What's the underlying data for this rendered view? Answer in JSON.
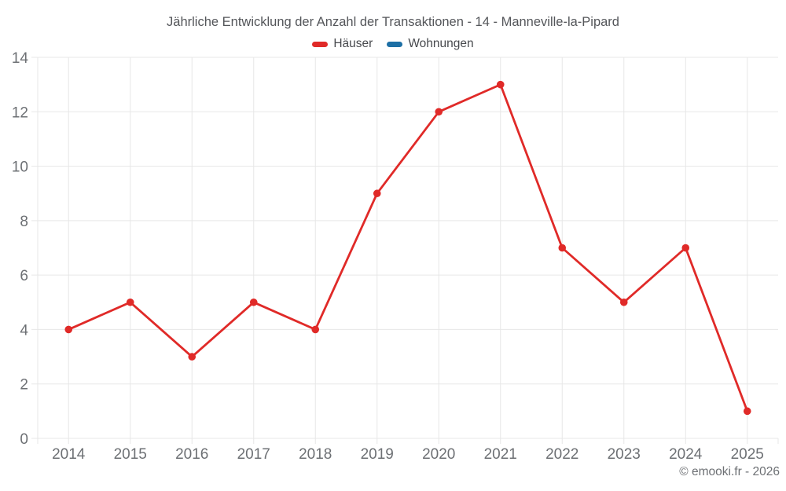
{
  "page": {
    "title": "Jährliche Entwicklung der Anzahl der Transaktionen - 14 - Manneville-la-Pipard",
    "copyright": "© emooki.fr - 2026"
  },
  "chart_data": {
    "type": "line",
    "title": "Jährliche Entwicklung der Anzahl der Transaktionen - 14 - Manneville-la-Pipard",
    "categories": [
      "2014",
      "2015",
      "2016",
      "2017",
      "2018",
      "2019",
      "2020",
      "2021",
      "2022",
      "2023",
      "2024",
      "2025"
    ],
    "series": [
      {
        "name": "Häuser",
        "color": "#e02a28",
        "values": [
          4,
          5,
          3,
          5,
          4,
          9,
          12,
          13,
          7,
          5,
          7,
          1
        ]
      },
      {
        "name": "Wohnungen",
        "color": "#1d6fa5",
        "values": []
      }
    ],
    "xlabel": "",
    "ylabel": "",
    "ylim": [
      0,
      14
    ],
    "yticks": [
      0,
      2,
      4,
      6,
      8,
      10,
      12,
      14
    ],
    "grid": true,
    "legend_position": "top",
    "styles": {
      "background": "#ffffff",
      "grid_color": "#e7e7e7",
      "tick_text_color": "#6d7074",
      "title_color": "#54565a",
      "legend_text_color": "#47494d",
      "marker_radius": 4.8,
      "line_width": 2.8
    }
  }
}
